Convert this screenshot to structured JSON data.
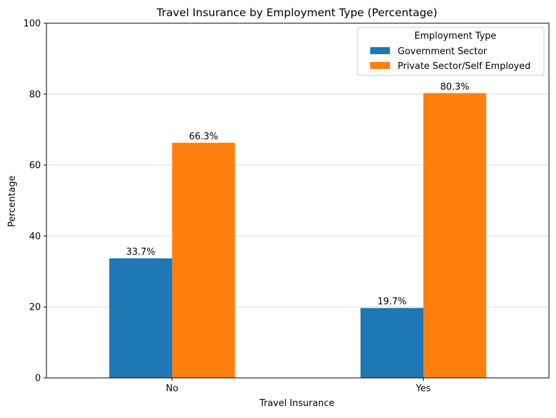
{
  "chart_data": {
    "type": "bar",
    "title": "Travel Insurance by Employment Type (Percentage)",
    "xlabel": "Travel Insurance",
    "ylabel": "Percentage",
    "categories": [
      "No",
      "Yes"
    ],
    "series": [
      {
        "name": "Government Sector",
        "color": "#1f77b4",
        "values": [
          33.7,
          19.7
        ],
        "labels": [
          "33.7%",
          "19.7%"
        ]
      },
      {
        "name": "Private Sector/Self Employed",
        "color": "#ff7f0e",
        "values": [
          66.3,
          80.3
        ],
        "labels": [
          "66.3%",
          "80.3%"
        ]
      }
    ],
    "ylim": [
      0,
      100
    ],
    "yticks": [
      0,
      20,
      40,
      60,
      80,
      100
    ],
    "ytick_labels": [
      "0",
      "20",
      "40",
      "60",
      "80",
      "100"
    ],
    "grid": "horizontal",
    "legend": {
      "title": "Employment Type",
      "position": "top-right"
    }
  }
}
